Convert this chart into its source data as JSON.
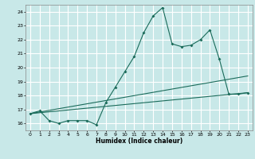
{
  "title": "",
  "xlabel": "Humidex (Indice chaleur)",
  "bg_color": "#c8e8e8",
  "grid_color": "#ffffff",
  "line_color": "#1a6b5a",
  "xlim": [
    -0.5,
    23.5
  ],
  "ylim": [
    15.5,
    24.5
  ],
  "yticks": [
    16,
    17,
    18,
    19,
    20,
    21,
    22,
    23,
    24
  ],
  "xticks": [
    0,
    1,
    2,
    3,
    4,
    5,
    6,
    7,
    8,
    9,
    10,
    11,
    12,
    13,
    14,
    15,
    16,
    17,
    18,
    19,
    20,
    21,
    22,
    23
  ],
  "series": [
    {
      "x": [
        0,
        1,
        2,
        3,
        4,
        5,
        6,
        7,
        8,
        9,
        10,
        11,
        12,
        13,
        14,
        15,
        16,
        17,
        18,
        19,
        20,
        21,
        22,
        23
      ],
      "y": [
        16.7,
        16.9,
        16.2,
        16.0,
        16.2,
        16.2,
        16.2,
        15.9,
        17.5,
        18.6,
        19.7,
        20.8,
        22.5,
        23.7,
        24.3,
        21.7,
        21.5,
        21.6,
        22.0,
        22.7,
        20.6,
        18.1,
        18.1,
        18.2
      ],
      "marker": true
    },
    {
      "x": [
        0,
        23
      ],
      "y": [
        16.7,
        18.2
      ],
      "marker": false
    },
    {
      "x": [
        0,
        23
      ],
      "y": [
        16.7,
        19.4
      ],
      "marker": false
    }
  ]
}
